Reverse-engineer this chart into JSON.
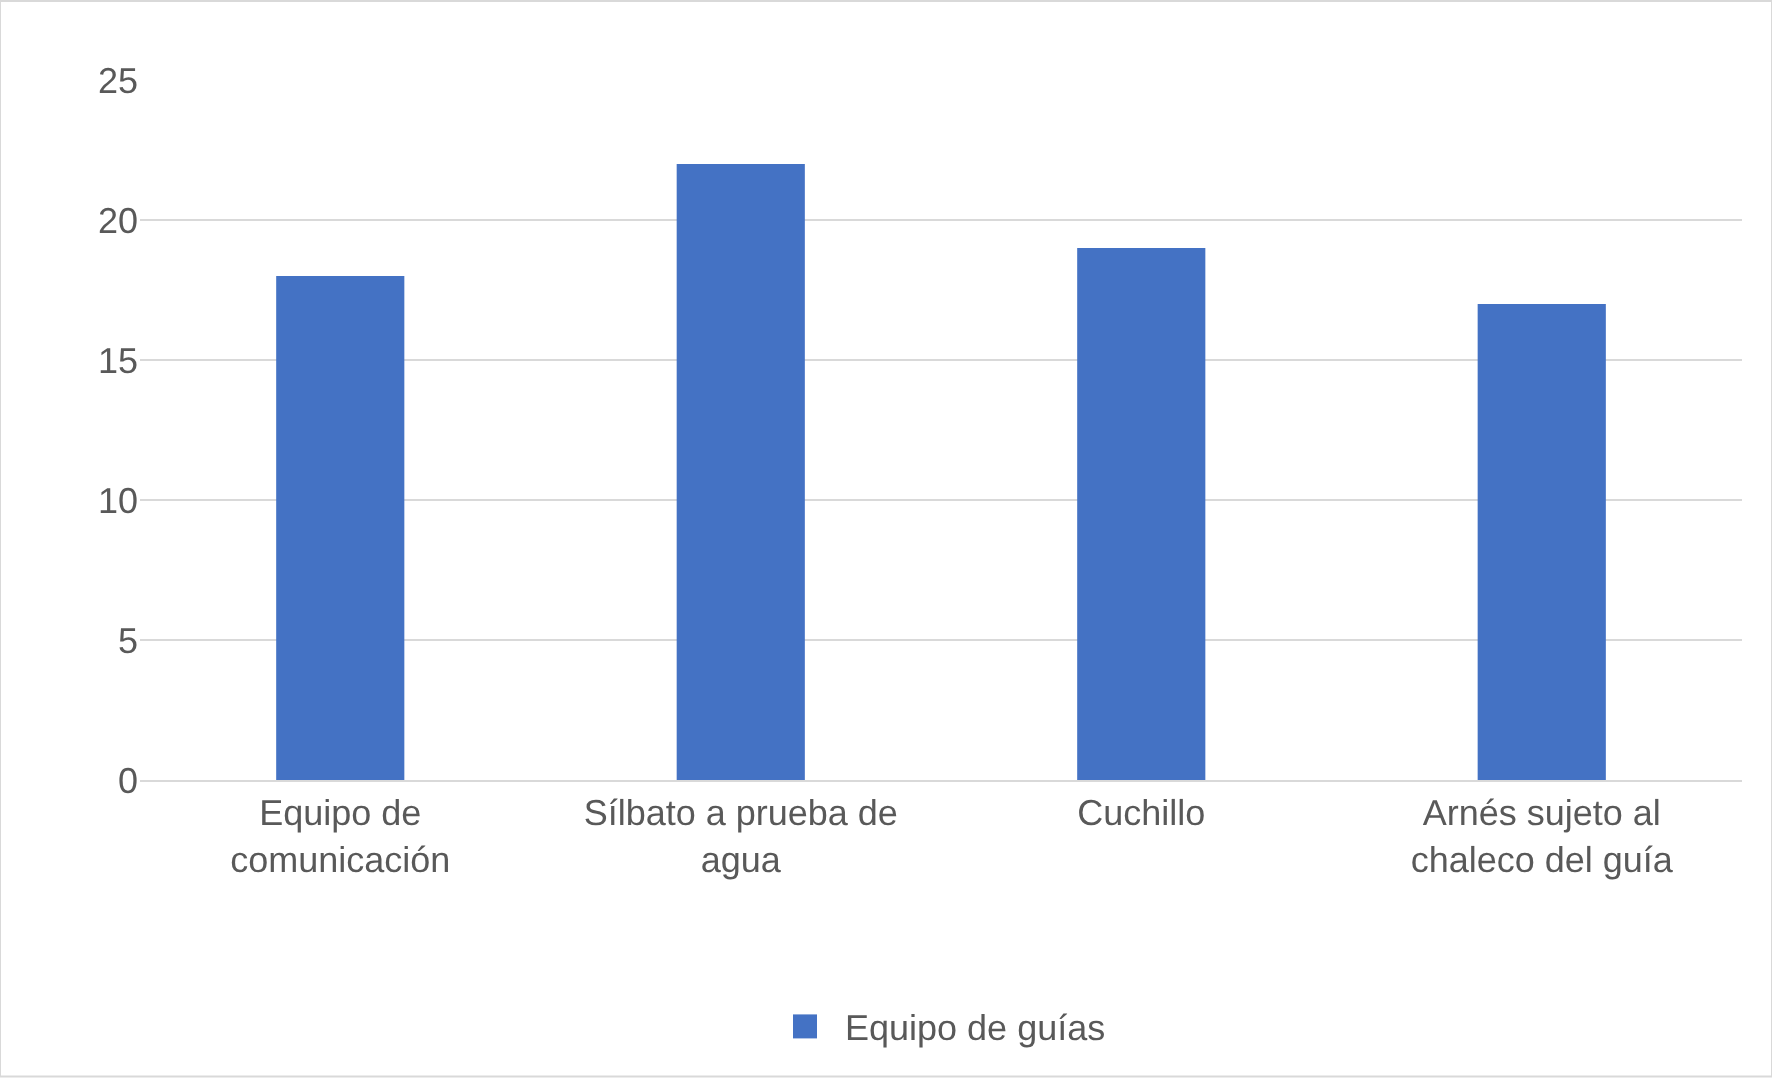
{
  "chart_data": {
    "type": "bar",
    "categories": [
      "Equipo de comunicación",
      "Sílbato a prueba de agua",
      "Cuchillo",
      "Arnés sujeto al chaleco del guía"
    ],
    "series": [
      {
        "name": "Equipo de guías",
        "color": "#4472c4",
        "values": [
          18,
          22,
          19,
          17
        ]
      }
    ],
    "ylim": [
      0,
      25
    ],
    "yticks": [
      0,
      5,
      10,
      15,
      20,
      25
    ],
    "grid": "y",
    "legend": "bottom"
  }
}
